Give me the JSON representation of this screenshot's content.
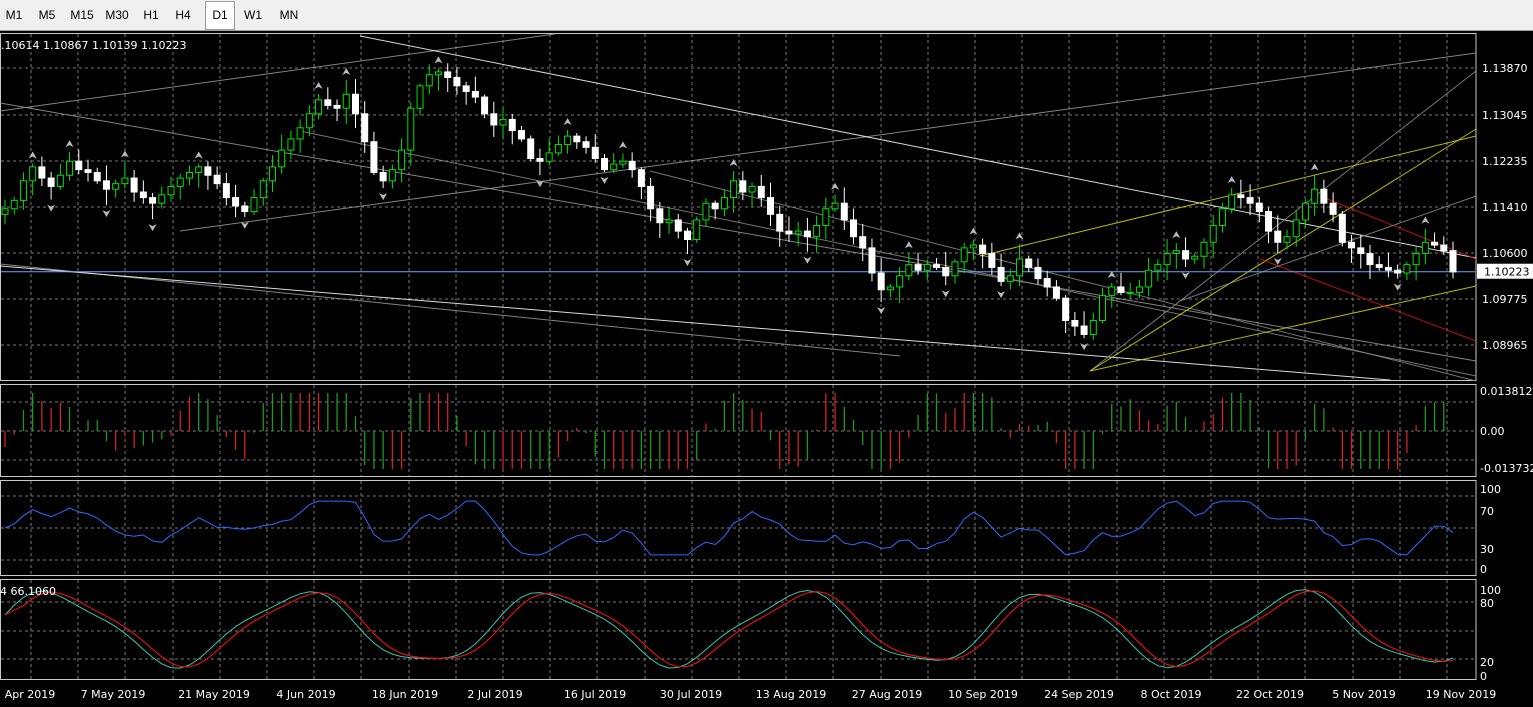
{
  "timeframes": {
    "items": [
      "M1",
      "M5",
      "M15",
      "M30",
      "H1",
      "H4",
      "D1",
      "W1",
      "MN"
    ],
    "active": "D1"
  },
  "main_header": ".10614 1.10867 1.10139 1.10223",
  "stoch_header": "4 66.1060",
  "colors": {
    "bull": "#00e000",
    "bear": "#ffffff",
    "osc_up": "#1d9a1d",
    "osc_down": "#d42020",
    "rsi": "#2f6bff",
    "stoch_main": "#33c9b0",
    "stoch_signal": "#e01010",
    "grid": "#777",
    "price_line": "#6aa9ff"
  },
  "price_axis": {
    "ticks": [
      "1.13870",
      "1.13045",
      "1.12235",
      "1.11410",
      "1.10600",
      "1.09775",
      "1.08965"
    ],
    "current": "1.10223"
  },
  "osc_axis": {
    "ticks": [
      "0.013812",
      "0.00",
      "-0.013732"
    ]
  },
  "rsi_axis": {
    "ticks": [
      "100",
      "70",
      "30",
      "0"
    ]
  },
  "stoch_axis": {
    "ticks": [
      "100",
      "80",
      "20",
      "0"
    ]
  },
  "date_axis": {
    "ticks": [
      "Apr 2019",
      "7 May 2019",
      "21 May 2019",
      "4 Jun 2019",
      "18 Jun 2019",
      "2 Jul 2019",
      "16 Jul 2019",
      "30 Jul 2019",
      "13 Aug 2019",
      "27 Aug 2019",
      "10 Sep 2019",
      "24 Sep 2019",
      "8 Oct 2019",
      "22 Oct 2019",
      "5 Nov 2019",
      "19 Nov 2019"
    ]
  },
  "chart_data": {
    "type": "candlestick",
    "symbol_ohlc_shown": {
      "open": "1.10614",
      "high": "1.10867",
      "low": "1.10139",
      "close": "1.10223"
    },
    "price_range": [
      1.0855,
      1.1415
    ],
    "closes": [
      1.1135,
      1.115,
      1.1185,
      1.121,
      1.119,
      1.1175,
      1.1195,
      1.122,
      1.1205,
      1.12,
      1.1185,
      1.117,
      1.118,
      1.119,
      1.1165,
      1.1155,
      1.1145,
      1.116,
      1.1175,
      1.119,
      1.12,
      1.121,
      1.1195,
      1.118,
      1.1155,
      1.114,
      1.113,
      1.1155,
      1.1185,
      1.121,
      1.124,
      1.126,
      1.128,
      1.1305,
      1.133,
      1.132,
      1.1315,
      1.134,
      1.1305,
      1.1255,
      1.12,
      1.1185,
      1.1205,
      1.124,
      1.1315,
      1.1355,
      1.1375,
      1.138,
      1.137,
      1.1355,
      1.1345,
      1.1335,
      1.1305,
      1.1285,
      1.1295,
      1.1275,
      1.126,
      1.1225,
      1.122,
      1.1235,
      1.125,
      1.1265,
      1.1255,
      1.1245,
      1.1225,
      1.1205,
      1.1215,
      1.122,
      1.1205,
      1.1175,
      1.1135,
      1.111,
      1.1115,
      1.1095,
      1.108,
      1.1115,
      1.1145,
      1.1135,
      1.1155,
      1.1185,
      1.1165,
      1.1175,
      1.1155,
      1.1125,
      1.1095,
      1.109,
      1.1095,
      1.1085,
      1.1105,
      1.1135,
      1.1145,
      1.1115,
      1.1085,
      1.1065,
      1.102,
      1.099,
      1.0995,
      1.1015,
      1.1035,
      1.1025,
      1.1035,
      1.103,
      1.1015,
      1.104,
      1.1065,
      1.107,
      1.1055,
      1.103,
      1.1005,
      1.1015,
      1.1045,
      1.103,
      1.101,
      1.0995,
      1.0975,
      1.0935,
      1.0925,
      1.091,
      1.0935,
      1.098,
      1.0995,
      1.0985,
      1.0985,
      1.0995,
      1.1025,
      1.1035,
      1.1055,
      1.106,
      1.1045,
      1.105,
      1.1075,
      1.1105,
      1.1135,
      1.116,
      1.1155,
      1.1145,
      1.113,
      1.1095,
      1.1075,
      1.1085,
      1.1115,
      1.1145,
      1.117,
      1.1145,
      1.1125,
      1.1075,
      1.1065,
      1.1055,
      1.1035,
      1.103,
      1.1025,
      1.102,
      1.1035,
      1.1055,
      1.1075,
      1.107,
      1.106,
      1.1022
    ],
    "oscillator": "histogram (green/red)",
    "rsi_levels": [
      30,
      70
    ],
    "stochastic_levels": [
      20,
      80
    ]
  }
}
